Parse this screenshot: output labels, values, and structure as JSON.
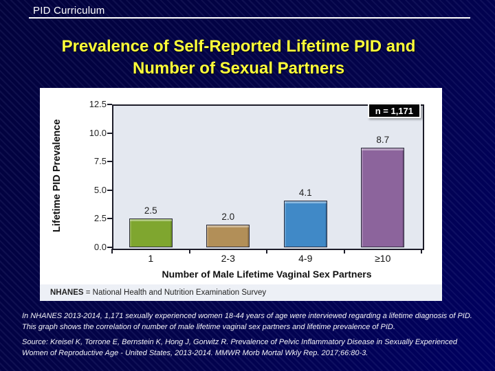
{
  "slide": {
    "header_label": "PID Curriculum",
    "title_line1": "Prevalence of Self-Reported Lifetime PID and",
    "title_line2": "Number of Sexual Partners",
    "colors": {
      "background_navy": "#02023c",
      "background_edge": "#000060",
      "title_yellow": "#ffff3a",
      "header_text": "#ffffff"
    }
  },
  "chart_data": {
    "type": "bar",
    "categories": [
      "1",
      "2-3",
      "4-9",
      "≥10"
    ],
    "values": [
      2.5,
      2.0,
      4.1,
      8.7
    ],
    "bar_colors": [
      "#7fa62f",
      "#b28f58",
      "#4089c7",
      "#8c649c"
    ],
    "xlabel": "Number of Male Lifetime Vaginal Sex Partners",
    "ylabel": "Lifetime PID Prevalence",
    "ylim": [
      0,
      12.5
    ],
    "yticks": [
      12.5,
      10.0,
      7.5,
      5.0,
      2.5,
      0.0
    ],
    "grid": false,
    "plot_background": "#e4e8f0",
    "sample_size_label": "n = 1,171",
    "footnote_label": "NHANES",
    "footnote_rest": " = National Health and Nutrition Examination Survey"
  },
  "body": {
    "paragraph": "In NHANES 2013-2014, 1,171 sexually experienced women 18-44 years of age were interviewed regarding a lifetime diagnosis of PID. This graph shows the correlation of number of male lifetime vaginal sex partners and lifetime prevalence of PID.",
    "source": "Source: Kreisel K, Torrone E, Bernstein K, Hong J, Gorwitz R. Prevalence of Pelvic Inflammatory Disease in Sexually Experienced Women of Reproductive Age - United States, 2013-2014. MMWR Morb Mortal Wkly Rep. 2017;66:80-3."
  }
}
